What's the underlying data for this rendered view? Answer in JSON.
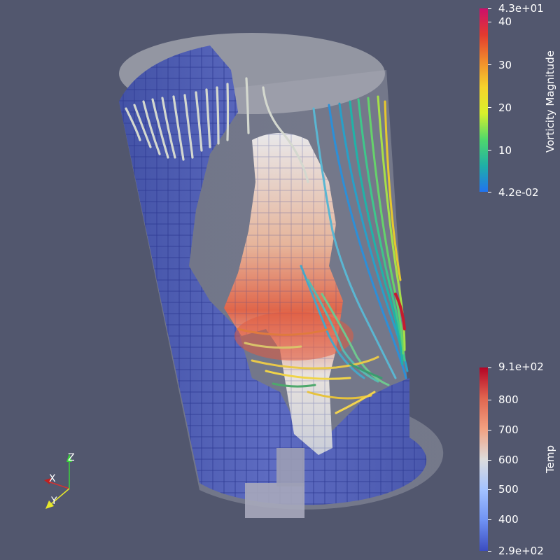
{
  "vorticity_legend": {
    "title": "Vorticity Magnitude",
    "max_label": "4.3e+01",
    "min_label": "4.2e-02",
    "ticks": [
      "40",
      "30",
      "20",
      "10"
    ],
    "colors": [
      "#cc0f6b",
      "#e23a2f",
      "#f08a2c",
      "#f6d22b",
      "#d9f02b",
      "#4fd86b",
      "#1fb0a6",
      "#2173f0"
    ]
  },
  "temp_legend": {
    "title": "Temp",
    "max_label": "9.1e+02",
    "min_label": "2.9e+02",
    "ticks": [
      "800",
      "700",
      "600",
      "500",
      "400"
    ],
    "colors": [
      "#b40426",
      "#e0654f",
      "#f2a080",
      "#dddcdc",
      "#a3c2ff",
      "#6f92f3",
      "#3b4cc0"
    ]
  },
  "orientation_axes": {
    "x_label": "X",
    "y_label": "Y",
    "z_label": "Z"
  },
  "scene": {
    "background": "#52576e",
    "shell_color": "#5f6ec4"
  }
}
